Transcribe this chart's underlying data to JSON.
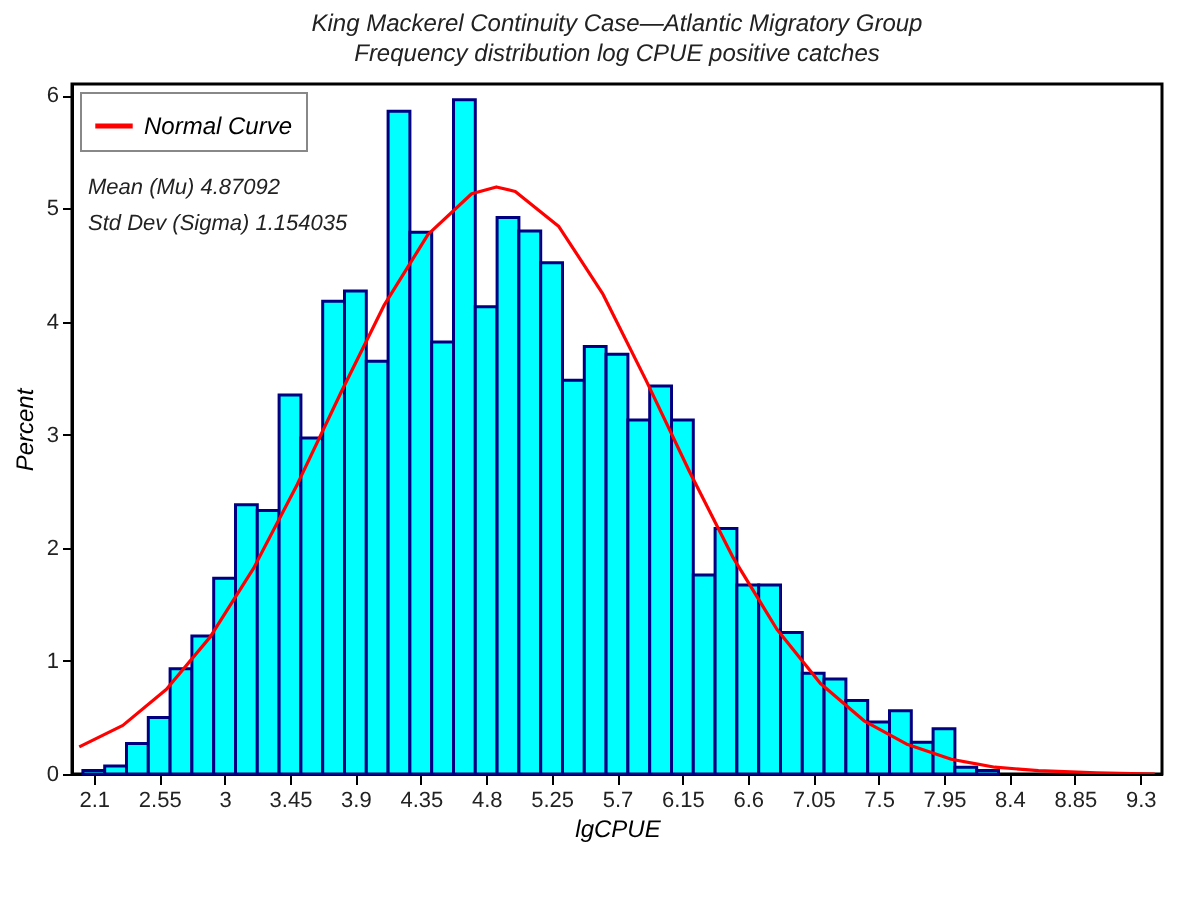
{
  "chart_data": {
    "type": "histogram",
    "title": "King Mackerel Continuity Case—Atlantic Migratory Group",
    "subtitle": "Frequency distribution log CPUE positive catches",
    "xlabel": "lgCPUE",
    "ylabel": "Percent",
    "bins": [
      2.025,
      2.175,
      2.325,
      2.475,
      2.625,
      2.775,
      2.925,
      3.075,
      3.225,
      3.375,
      3.525,
      3.675,
      3.825,
      3.975,
      4.125,
      4.275,
      4.425,
      4.575,
      4.725,
      4.875,
      5.025,
      5.175,
      5.325,
      5.475,
      5.625,
      5.775,
      5.925,
      6.075,
      6.225,
      6.375,
      6.525,
      6.675,
      6.825,
      6.975,
      7.125,
      7.275,
      7.425,
      7.575,
      7.725,
      7.875,
      8.025,
      8.175,
      8.325
    ],
    "series": [
      {
        "color": "#00ffff",
        "values": [
          0.03,
          0.07,
          0.27,
          0.5,
          0.93,
          1.22,
          1.73,
          2.38,
          2.33,
          3.35,
          2.97,
          4.18,
          4.27,
          3.65,
          5.86,
          4.79,
          3.82,
          5.96,
          4.13,
          4.92,
          4.8,
          4.52,
          3.48,
          3.78,
          3.71,
          3.13,
          3.43,
          3.13,
          1.76,
          2.17,
          1.67,
          1.67,
          1.25,
          0.89,
          0.84,
          0.65,
          0.46,
          0.56,
          0.28,
          0.4,
          0.06,
          0.03
        ]
      },
      {
        "type": "line",
        "name": "Normal Curve",
        "color": "#ff0000",
        "x": [
          2.0,
          2.3,
          2.6,
          2.9,
          3.2,
          3.5,
          3.8,
          4.1,
          4.4,
          4.7,
          4.87,
          5.0,
          5.3,
          5.6,
          5.9,
          6.2,
          6.5,
          6.8,
          7.1,
          7.4,
          7.7,
          8.0,
          8.3,
          8.6,
          9.0,
          9.4
        ],
        "values": [
          0.24,
          0.43,
          0.75,
          1.21,
          1.82,
          2.56,
          3.37,
          4.15,
          4.77,
          5.13,
          5.19,
          5.15,
          4.84,
          4.25,
          3.48,
          2.67,
          1.91,
          1.28,
          0.8,
          0.47,
          0.26,
          0.13,
          0.06,
          0.03,
          0.01,
          0
        ]
      }
    ],
    "annotations": [
      "Mean (Mu) 4.87092",
      "Std Dev (Sigma) 1.154035"
    ],
    "xlim": [
      1.95,
      9.45
    ],
    "xticks": [
      2.1,
      2.55,
      3,
      3.45,
      3.9,
      4.35,
      4.8,
      5.25,
      5.7,
      6.15,
      6.6,
      7.05,
      7.5,
      7.95,
      8.4,
      8.85,
      9.3
    ],
    "ylim": [
      0,
      6.1
    ],
    "yticks": [
      0,
      1,
      2,
      3,
      4,
      5,
      6
    ],
    "grid": false,
    "legend": "top left"
  }
}
